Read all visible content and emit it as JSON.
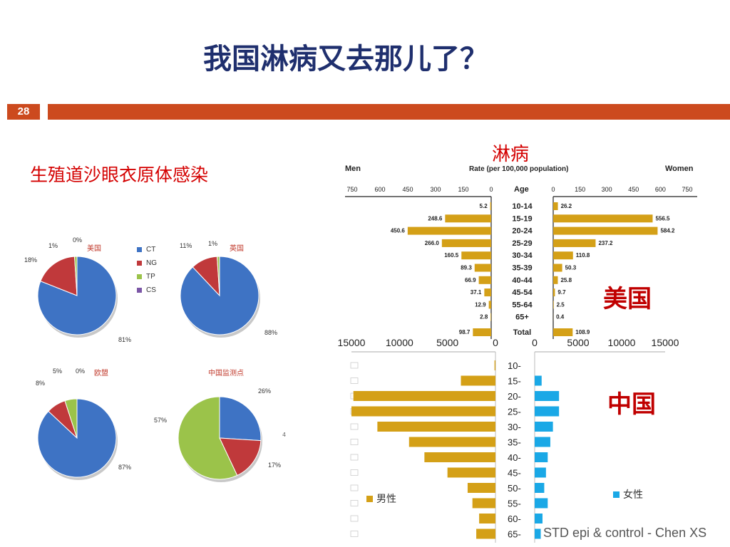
{
  "slide": {
    "title": "我国淋病又去那儿了？",
    "page_number": "28",
    "left_heading": "生殖道沙眼衣原体感染",
    "right_heading": "淋病",
    "us_label": "美国",
    "china_label": "中国",
    "footer": "STD epi & control - Chen XS",
    "stray_mark": "4"
  },
  "colors": {
    "accent_band": "#cc4a1e",
    "title": "#1f2f6e",
    "heading_red": "#d40000",
    "pie_ct": "#3e73c4",
    "pie_ng": "#c0393b",
    "pie_tp": "#9bc34a",
    "pie_cs": "#7b56a6",
    "bar_gold": "#d4a017",
    "bar_cyan": "#1aa8e6"
  },
  "chart_data": [
    {
      "type": "pie",
      "title": "美国",
      "categories": [
        "CT",
        "NG",
        "TP",
        "CS"
      ],
      "values": [
        81,
        18,
        1,
        0
      ],
      "labels": [
        "81%",
        "18%",
        "1%",
        "0%"
      ],
      "legend": [
        "CT",
        "NG",
        "TP",
        "CS"
      ],
      "legend_position": "right"
    },
    {
      "type": "pie",
      "title": "英国",
      "categories": [
        "CT",
        "NG",
        "TP",
        "CS"
      ],
      "values": [
        88,
        11,
        1,
        0
      ],
      "labels": [
        "88%",
        "11%",
        "1%",
        ""
      ]
    },
    {
      "type": "pie",
      "title": "欧盟",
      "categories": [
        "CT",
        "NG",
        "TP",
        "CS"
      ],
      "values": [
        87,
        8,
        5,
        0
      ],
      "labels": [
        "87%",
        "8%",
        "5%",
        "0%"
      ]
    },
    {
      "type": "pie",
      "title": "中国监测点",
      "categories": [
        "CT",
        "NG",
        "TP"
      ],
      "values": [
        26,
        17,
        57
      ],
      "labels": [
        "26%",
        "17%",
        "57%"
      ]
    },
    {
      "type": "bar",
      "orientation": "horizontal-pyramid",
      "left_title": "Men",
      "right_title": "Women",
      "center_title": "Rate (per 100,000 population)",
      "category_axis_label": "Age",
      "categories": [
        "10-14",
        "15-19",
        "20-24",
        "25-29",
        "30-34",
        "35-39",
        "40-44",
        "45-54",
        "55-64",
        "65+",
        "Total"
      ],
      "series": [
        {
          "name": "Men",
          "values": [
            5.2,
            248.6,
            450.6,
            266.0,
            160.5,
            89.3,
            66.9,
            37.1,
            12.9,
            2.8,
            98.7
          ],
          "value_labels": [
            "5.2",
            "248.6",
            "450.6",
            "266.0",
            "160.5",
            "89.3",
            "66.9",
            "37.1",
            "12.9",
            "2.8",
            "98.7"
          ]
        },
        {
          "name": "Women",
          "values": [
            26.2,
            556.5,
            584.2,
            237.2,
            110.8,
            50.3,
            25.8,
            9.7,
            2.5,
            0.4,
            108.9
          ],
          "value_labels": [
            "26.2",
            "556.5",
            "584.2",
            "237.2",
            "110.8",
            "50.3",
            "25.8",
            "9.7",
            "2.5",
            "0.4",
            "108.9"
          ]
        }
      ],
      "xlim": [
        0,
        750
      ],
      "x_ticks": [
        "750",
        "600",
        "450",
        "300",
        "150",
        "0"
      ],
      "x_ticks_right": [
        "0",
        "150",
        "300",
        "450",
        "600",
        "750"
      ]
    },
    {
      "type": "bar",
      "orientation": "horizontal-pyramid",
      "categories": [
        "10-",
        "15-",
        "20-",
        "25-",
        "30-",
        "35-",
        "40-",
        "45-",
        "50-",
        "55-",
        "60-",
        "65-"
      ],
      "series": [
        {
          "name": "男性",
          "values": [
            100,
            3600,
            14800,
            15000,
            12300,
            9000,
            7400,
            5000,
            2900,
            2400,
            1700,
            2000
          ]
        },
        {
          "name": "女性",
          "values": [
            0,
            800,
            2800,
            2800,
            2100,
            1800,
            1500,
            1300,
            1100,
            1500,
            900,
            700
          ]
        }
      ],
      "xlim": [
        0,
        15000
      ],
      "x_ticks_left": [
        "15000",
        "10000",
        "5000",
        "0"
      ],
      "x_ticks_right": [
        "0",
        "5000",
        "10000",
        "15000"
      ]
    }
  ]
}
